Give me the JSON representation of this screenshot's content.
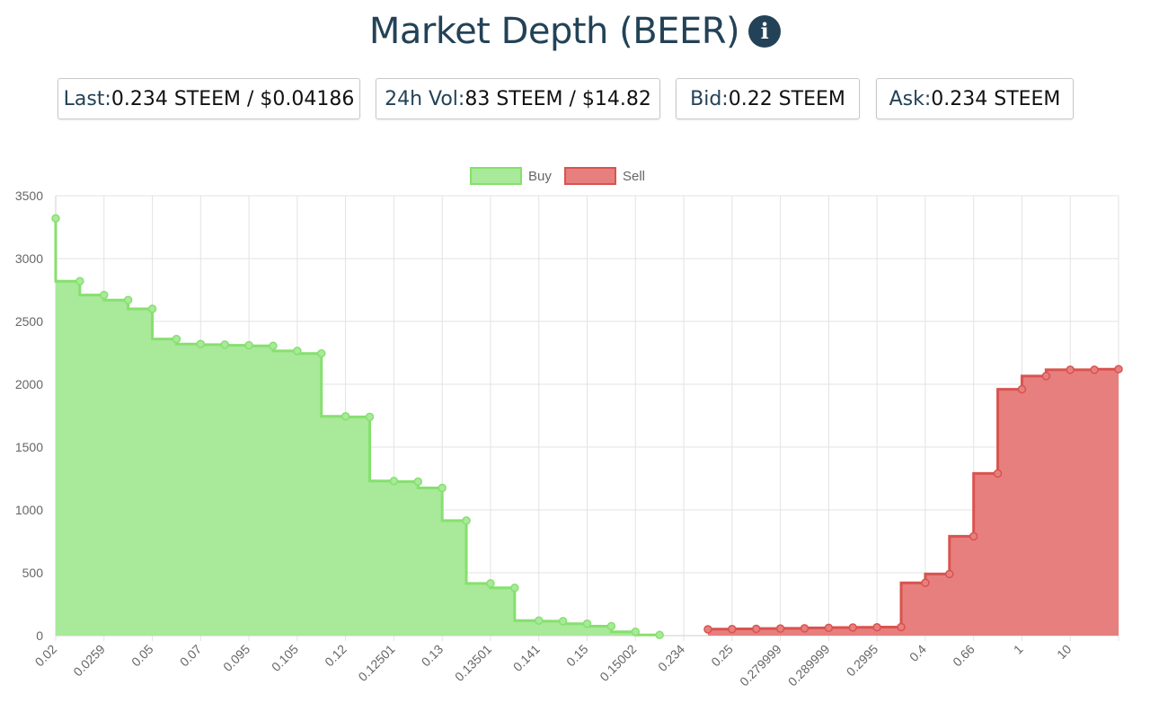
{
  "header": {
    "title": "Market Depth (BEER)",
    "info_icon": "info-circle-icon"
  },
  "stats": [
    {
      "key": "Last:",
      "value": " 0.234 STEEM / $0.04186"
    },
    {
      "key": "24h Vol:",
      "value": " 83 STEEM / $14.82"
    },
    {
      "key": "Bid:",
      "value": " 0.22 STEEM"
    },
    {
      "key": "Ask:",
      "value": " 0.234 STEEM"
    }
  ],
  "chart_data": {
    "type": "area",
    "title": "",
    "xlabel": "",
    "ylabel": "",
    "ylim": [
      0,
      3500
    ],
    "y_ticks": [
      0,
      500,
      1000,
      1500,
      2000,
      2500,
      3000,
      3500
    ],
    "x_tick_labels": [
      "0.02",
      "0.0259",
      "0.05",
      "0.07",
      "0.095",
      "0.105",
      "0.12",
      "0.12501",
      "0.13",
      "0.13501",
      "0.141",
      "0.15",
      "0.15002",
      "0.234",
      "0.25",
      "0.279999",
      "0.289999",
      "0.2995",
      "0.4",
      "0.66",
      "1",
      "10"
    ],
    "grid": true,
    "legend_position": "top-center",
    "series": [
      {
        "name": "Buy",
        "color": "#86e06e",
        "fill": "#a8e99a",
        "stepped": true,
        "values": [
          3320,
          2820,
          2710,
          2670,
          2600,
          2360,
          2320,
          2315,
          2310,
          2305,
          2265,
          2245,
          1745,
          1740,
          1230,
          1225,
          1175,
          915,
          415,
          380,
          120,
          115,
          95,
          75,
          30,
          5
        ]
      },
      {
        "name": "Sell",
        "color": "#d9534f",
        "fill": "#e77f7e",
        "stepped": true,
        "values": [
          50,
          52,
          54,
          56,
          58,
          62,
          64,
          66,
          68,
          420,
          490,
          790,
          1290,
          1960,
          2065,
          2115,
          2115,
          2120
        ]
      }
    ]
  }
}
